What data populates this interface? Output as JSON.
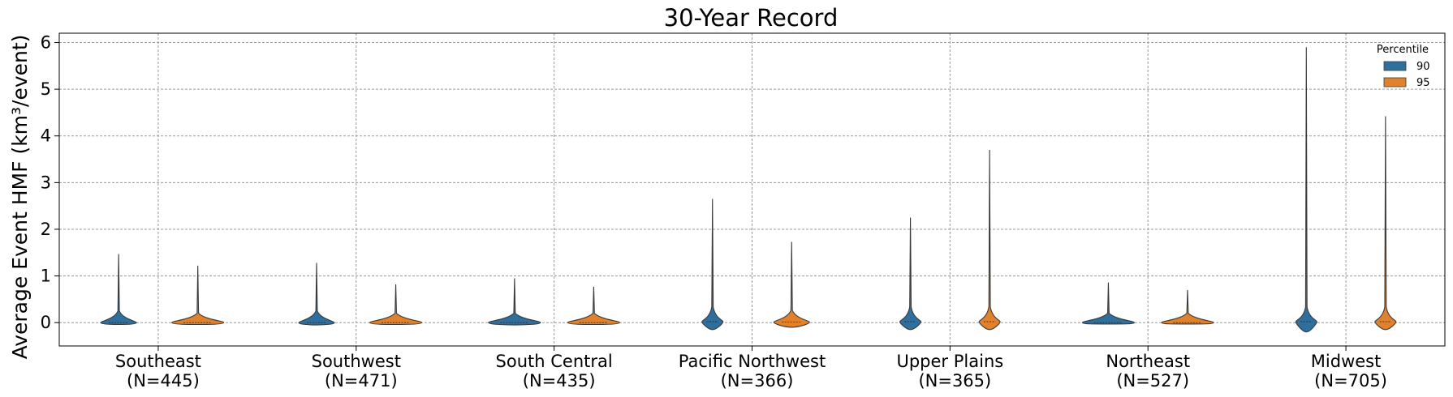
{
  "chart_data": {
    "type": "violin",
    "title": "30-Year Record",
    "xlabel": "",
    "ylabel": "Average Event HMF (km³/event)",
    "ylim": [
      -0.5,
      6.2
    ],
    "yticks": [
      0,
      1,
      2,
      3,
      4,
      5,
      6
    ],
    "grid": true,
    "legend": {
      "title": "Percentile",
      "placement": "top-right"
    },
    "categories": [
      {
        "name": "Southeast",
        "n": "(N=445)"
      },
      {
        "name": "Southwest",
        "n": "(N=471)"
      },
      {
        "name": "South Central",
        "n": "(N=435)"
      },
      {
        "name": "Pacific Northwest",
        "n": "(N=366)"
      },
      {
        "name": "Upper Plains",
        "n": "(N=365)"
      },
      {
        "name": "Northeast",
        "n": "(N=527)"
      },
      {
        "name": "Midwest",
        "n": "(N=705)"
      }
    ],
    "series": [
      {
        "name": "90",
        "color": "#2f6f9e",
        "violins": [
          {
            "min": -0.04,
            "max": 1.47,
            "median": 0.0
          },
          {
            "min": -0.05,
            "max": 1.28,
            "median": 0.0
          },
          {
            "min": -0.05,
            "max": 0.95,
            "median": 0.0
          },
          {
            "min": -0.15,
            "max": 2.65,
            "median": 0.02
          },
          {
            "min": -0.15,
            "max": 2.25,
            "median": 0.02
          },
          {
            "min": -0.03,
            "max": 0.86,
            "median": 0.0
          },
          {
            "min": -0.2,
            "max": 5.9,
            "median": 0.02
          }
        ]
      },
      {
        "name": "95",
        "color": "#e1812c",
        "violins": [
          {
            "min": -0.04,
            "max": 1.22,
            "median": 0.0
          },
          {
            "min": -0.04,
            "max": 0.82,
            "median": 0.0
          },
          {
            "min": -0.04,
            "max": 0.77,
            "median": 0.0
          },
          {
            "min": -0.1,
            "max": 1.73,
            "median": 0.01
          },
          {
            "min": -0.15,
            "max": 3.7,
            "median": 0.02
          },
          {
            "min": -0.03,
            "max": 0.7,
            "median": 0.0
          },
          {
            "min": -0.15,
            "max": 4.42,
            "median": 0.02
          }
        ]
      }
    ]
  }
}
